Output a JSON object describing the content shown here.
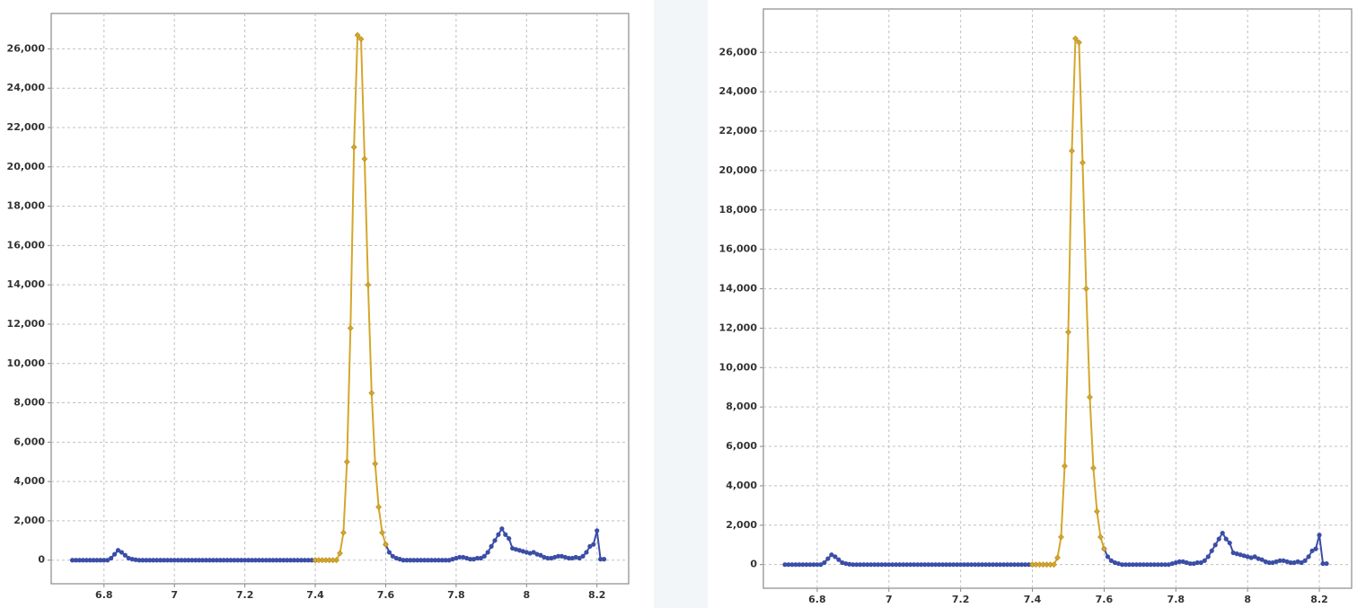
{
  "chart_data": [
    {
      "type": "line",
      "x": [
        6.71,
        6.72,
        6.73,
        6.74,
        6.75,
        6.76,
        6.77,
        6.78,
        6.79,
        6.8,
        6.81,
        6.82,
        6.83,
        6.84,
        6.85,
        6.86,
        6.87,
        6.88,
        6.89,
        6.9,
        6.91,
        6.92,
        6.93,
        6.94,
        6.95,
        6.96,
        6.97,
        6.98,
        6.99,
        7,
        7.01,
        7.02,
        7.03,
        7.04,
        7.05,
        7.06,
        7.07,
        7.08,
        7.09,
        7.1,
        7.11,
        7.12,
        7.13,
        7.14,
        7.15,
        7.16,
        7.17,
        7.18,
        7.19,
        7.2,
        7.21,
        7.22,
        7.23,
        7.24,
        7.25,
        7.26,
        7.27,
        7.28,
        7.29,
        7.3,
        7.31,
        7.32,
        7.33,
        7.34,
        7.35,
        7.36,
        7.37,
        7.38,
        7.39,
        7.4,
        7.41,
        7.42,
        7.43,
        7.44,
        7.45,
        7.46,
        7.47,
        7.48,
        7.49,
        7.5,
        7.51,
        7.52,
        7.53,
        7.54,
        7.55,
        7.56,
        7.57,
        7.58,
        7.59,
        7.6,
        7.61,
        7.62,
        7.63,
        7.64,
        7.65,
        7.66,
        7.67,
        7.68,
        7.69,
        7.7,
        7.71,
        7.72,
        7.73,
        7.74,
        7.75,
        7.76,
        7.77,
        7.78,
        7.79,
        7.8,
        7.81,
        7.82,
        7.83,
        7.84,
        7.85,
        7.86,
        7.87,
        7.88,
        7.89,
        7.9,
        7.91,
        7.92,
        7.93,
        7.94,
        7.95,
        7.96,
        7.97,
        7.98,
        7.99,
        8,
        8.01,
        8.02,
        8.03,
        8.04,
        8.05,
        8.06,
        8.07,
        8.08,
        8.09,
        8.1,
        8.11,
        8.12,
        8.13,
        8.14,
        8.15,
        8.16,
        8.17,
        8.18,
        8.19,
        8.2,
        8.21,
        8.22
      ],
      "series": [
        {
          "color": "#3b4ea6",
          "values": [
            0,
            0,
            0,
            0,
            0,
            0,
            0,
            0,
            0,
            0,
            0,
            100,
            300,
            500,
            400,
            250,
            100,
            50,
            20,
            0,
            0,
            0,
            0,
            0,
            0,
            0,
            0,
            0,
            0,
            0,
            0,
            0,
            0,
            0,
            0,
            0,
            0,
            0,
            0,
            0,
            0,
            0,
            0,
            0,
            0,
            0,
            0,
            0,
            0,
            0,
            0,
            0,
            0,
            0,
            0,
            0,
            0,
            0,
            0,
            0,
            0,
            0,
            0,
            0,
            0,
            0,
            0,
            0,
            0,
            0,
            null,
            null,
            null,
            null,
            null,
            null,
            null,
            null,
            null,
            null,
            null,
            null,
            null,
            null,
            null,
            null,
            null,
            null,
            null,
            800,
            400,
            200,
            100,
            50,
            0,
            0,
            0,
            0,
            0,
            0,
            0,
            0,
            0,
            0,
            0,
            0,
            0,
            0,
            50,
            100,
            150,
            150,
            100,
            50,
            50,
            100,
            100,
            200,
            400,
            700,
            1000,
            1300,
            1600,
            1300,
            1100,
            600,
            550,
            500,
            450,
            400,
            350,
            400,
            300,
            250,
            150,
            100,
            100,
            150,
            200,
            200,
            150,
            100,
            100,
            150,
            100,
            200,
            400,
            700,
            800,
            1500,
            50,
            50
          ]
        },
        {
          "color": "#d4a72c",
          "values": [
            null,
            null,
            null,
            null,
            null,
            null,
            null,
            null,
            null,
            null,
            null,
            null,
            null,
            null,
            null,
            null,
            null,
            null,
            null,
            null,
            null,
            null,
            null,
            null,
            null,
            null,
            null,
            null,
            null,
            null,
            null,
            null,
            null,
            null,
            null,
            null,
            null,
            null,
            null,
            null,
            null,
            null,
            null,
            null,
            null,
            null,
            null,
            null,
            null,
            null,
            null,
            null,
            null,
            null,
            null,
            null,
            null,
            null,
            null,
            null,
            null,
            null,
            null,
            null,
            null,
            null,
            null,
            null,
            null,
            0,
            0,
            0,
            0,
            0,
            0,
            0,
            350,
            1400,
            5000,
            11800,
            21000,
            26700,
            26500,
            20400,
            14000,
            8500,
            4900,
            2700,
            1400,
            800,
            null,
            null,
            null,
            null,
            null,
            null,
            null,
            null,
            null,
            null,
            null,
            null,
            null,
            null,
            null,
            null,
            null,
            null,
            null,
            null,
            null,
            null,
            null,
            null,
            null,
            null,
            null,
            null,
            null,
            null,
            null,
            null,
            null,
            null,
            null,
            null,
            null,
            null,
            null,
            null,
            null,
            null,
            null,
            null,
            null,
            null,
            null,
            null,
            null,
            null,
            null,
            null,
            null,
            null,
            null,
            null,
            null,
            null,
            null,
            null,
            null,
            null
          ]
        }
      ],
      "xlim": [
        6.65,
        8.29
      ],
      "xticks": [
        6.8,
        7,
        7.2,
        7.4,
        7.6,
        7.8,
        8,
        8.2
      ],
      "ylim": [
        -1200,
        27800
      ],
      "yticks": [
        0,
        {
          "value": 2000,
          "label": "2,000"
        },
        {
          "value": 4000,
          "label": "4,000"
        },
        {
          "value": 6000,
          "label": "6,000"
        },
        {
          "value": 8000,
          "label": "8,000"
        },
        {
          "value": 10000,
          "label": "10,000"
        },
        {
          "value": 12000,
          "label": "12,000"
        },
        {
          "value": 14000,
          "label": "14,000"
        },
        {
          "value": 16000,
          "label": "16,000"
        },
        {
          "value": 18000,
          "label": "18,000"
        },
        {
          "value": 20000,
          "label": "20,000"
        },
        {
          "value": 22000,
          "label": "22,000"
        },
        {
          "value": 24000,
          "label": "24,000"
        },
        {
          "value": 26000,
          "label": "26,000"
        }
      ],
      "grid": true
    },
    {
      "type": "line",
      "x": [
        6.71,
        6.72,
        6.73,
        6.74,
        6.75,
        6.76,
        6.77,
        6.78,
        6.79,
        6.8,
        6.81,
        6.82,
        6.83,
        6.84,
        6.85,
        6.86,
        6.87,
        6.88,
        6.89,
        6.9,
        6.91,
        6.92,
        6.93,
        6.94,
        6.95,
        6.96,
        6.97,
        6.98,
        6.99,
        7,
        7.01,
        7.02,
        7.03,
        7.04,
        7.05,
        7.06,
        7.07,
        7.08,
        7.09,
        7.1,
        7.11,
        7.12,
        7.13,
        7.14,
        7.15,
        7.16,
        7.17,
        7.18,
        7.19,
        7.2,
        7.21,
        7.22,
        7.23,
        7.24,
        7.25,
        7.26,
        7.27,
        7.28,
        7.29,
        7.3,
        7.31,
        7.32,
        7.33,
        7.34,
        7.35,
        7.36,
        7.37,
        7.38,
        7.39,
        7.4,
        7.41,
        7.42,
        7.43,
        7.44,
        7.45,
        7.46,
        7.47,
        7.48,
        7.49,
        7.5,
        7.51,
        7.52,
        7.53,
        7.54,
        7.55,
        7.56,
        7.57,
        7.58,
        7.59,
        7.6,
        7.61,
        7.62,
        7.63,
        7.64,
        7.65,
        7.66,
        7.67,
        7.68,
        7.69,
        7.7,
        7.71,
        7.72,
        7.73,
        7.74,
        7.75,
        7.76,
        7.77,
        7.78,
        7.79,
        7.8,
        7.81,
        7.82,
        7.83,
        7.84,
        7.85,
        7.86,
        7.87,
        7.88,
        7.89,
        7.9,
        7.91,
        7.92,
        7.93,
        7.94,
        7.95,
        7.96,
        7.97,
        7.98,
        7.99,
        8,
        8.01,
        8.02,
        8.03,
        8.04,
        8.05,
        8.06,
        8.07,
        8.08,
        8.09,
        8.1,
        8.11,
        8.12,
        8.13,
        8.14,
        8.15,
        8.16,
        8.17,
        8.18,
        8.19,
        8.2,
        8.21,
        8.22
      ],
      "series": [
        {
          "color": "#3b4ea6",
          "values": [
            0,
            0,
            0,
            0,
            0,
            0,
            0,
            0,
            0,
            0,
            0,
            100,
            300,
            500,
            400,
            250,
            100,
            50,
            20,
            0,
            0,
            0,
            0,
            0,
            0,
            0,
            0,
            0,
            0,
            0,
            0,
            0,
            0,
            0,
            0,
            0,
            0,
            0,
            0,
            0,
            0,
            0,
            0,
            0,
            0,
            0,
            0,
            0,
            0,
            0,
            0,
            0,
            0,
            0,
            0,
            0,
            0,
            0,
            0,
            0,
            0,
            0,
            0,
            0,
            0,
            0,
            0,
            0,
            0,
            0,
            null,
            null,
            null,
            null,
            null,
            null,
            null,
            null,
            null,
            null,
            null,
            null,
            null,
            null,
            null,
            null,
            null,
            null,
            null,
            800,
            400,
            200,
            100,
            50,
            0,
            0,
            0,
            0,
            0,
            0,
            0,
            0,
            0,
            0,
            0,
            0,
            0,
            0,
            50,
            100,
            150,
            150,
            100,
            50,
            50,
            100,
            100,
            200,
            400,
            700,
            1000,
            1300,
            1600,
            1300,
            1100,
            600,
            550,
            500,
            450,
            400,
            350,
            400,
            300,
            250,
            150,
            100,
            100,
            150,
            200,
            200,
            150,
            100,
            100,
            150,
            100,
            200,
            400,
            700,
            800,
            1500,
            50,
            50
          ]
        },
        {
          "color": "#d4a72c",
          "values": [
            null,
            null,
            null,
            null,
            null,
            null,
            null,
            null,
            null,
            null,
            null,
            null,
            null,
            null,
            null,
            null,
            null,
            null,
            null,
            null,
            null,
            null,
            null,
            null,
            null,
            null,
            null,
            null,
            null,
            null,
            null,
            null,
            null,
            null,
            null,
            null,
            null,
            null,
            null,
            null,
            null,
            null,
            null,
            null,
            null,
            null,
            null,
            null,
            null,
            null,
            null,
            null,
            null,
            null,
            null,
            null,
            null,
            null,
            null,
            null,
            null,
            null,
            null,
            null,
            null,
            null,
            null,
            null,
            null,
            0,
            0,
            0,
            0,
            0,
            0,
            0,
            350,
            1400,
            5000,
            11800,
            21000,
            26700,
            26500,
            20400,
            14000,
            8500,
            4900,
            2700,
            1400,
            800,
            null,
            null,
            null,
            null,
            null,
            null,
            null,
            null,
            null,
            null,
            null,
            null,
            null,
            null,
            null,
            null,
            null,
            null,
            null,
            null,
            null,
            null,
            null,
            null,
            null,
            null,
            null,
            null,
            null,
            null,
            null,
            null,
            null,
            null,
            null,
            null,
            null,
            null,
            null,
            null,
            null,
            null,
            null,
            null,
            null,
            null,
            null,
            null,
            null,
            null,
            null,
            null,
            null,
            null,
            null,
            null,
            null,
            null,
            null,
            null,
            null,
            null
          ]
        }
      ],
      "xlim": [
        6.65,
        8.29
      ],
      "xticks": [
        6.8,
        7,
        7.2,
        7.4,
        7.6,
        7.8,
        8,
        8.2
      ],
      "ylim": [
        -1200,
        28200
      ],
      "yticks": [
        0,
        {
          "value": 2000,
          "label": "2,000"
        },
        {
          "value": 4000,
          "label": "4,000"
        },
        {
          "value": 6000,
          "label": "6,000"
        },
        {
          "value": 8000,
          "label": "8,000"
        },
        {
          "value": 10000,
          "label": "10,000"
        },
        {
          "value": 12000,
          "label": "12,000"
        },
        {
          "value": 14000,
          "label": "14,000"
        },
        {
          "value": 16000,
          "label": "16,000"
        },
        {
          "value": 18000,
          "label": "18,000"
        },
        {
          "value": 20000,
          "label": "20,000"
        },
        {
          "value": 22000,
          "label": "22,000"
        },
        {
          "value": 24000,
          "label": "24,000"
        },
        {
          "value": 26000,
          "label": "26,000"
        }
      ],
      "grid": true
    }
  ]
}
